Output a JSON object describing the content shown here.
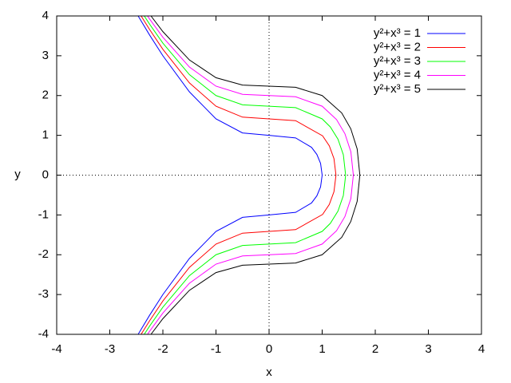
{
  "chart_data": {
    "type": "line",
    "x_label": "x",
    "y_label": "y",
    "xlim": [
      -4,
      4
    ],
    "ylim": [
      -4,
      4
    ],
    "xticks": [
      -4,
      -3,
      -2,
      -1,
      0,
      1,
      2,
      3,
      4
    ],
    "yticks": [
      -4,
      -3,
      -2,
      -1,
      0,
      1,
      2,
      3,
      4
    ],
    "zeroaxis": true,
    "legend": "top-right",
    "series": [
      {
        "name": "y²+x³ = 1",
        "color": "#0000ff",
        "x": [
          -2.466,
          -2.25,
          -2,
          -1.5,
          -1,
          -0.5,
          0,
          0.5,
          0.8,
          0.9,
          0.97,
          1,
          0.97,
          0.9,
          0.8,
          0.5,
          0,
          -0.5,
          -1,
          -1.5,
          -2,
          -2.25,
          -2.466
        ],
        "y": [
          4,
          3.52,
          3,
          2.092,
          1.414,
          1.061,
          1,
          0.935,
          0.699,
          0.521,
          0.295,
          0,
          -0.295,
          -0.521,
          -0.699,
          -0.935,
          -1,
          -1.061,
          -1.414,
          -2.092,
          -3,
          -3.52,
          -4
        ]
      },
      {
        "name": "y²+x³ = 2",
        "color": "#ff0000",
        "x": [
          -2.41,
          -2.25,
          -2,
          -1.5,
          -1,
          -0.5,
          0,
          0.5,
          1.008,
          1.134,
          1.222,
          1.26,
          1.222,
          1.134,
          1.008,
          0.5,
          0,
          -0.5,
          -1,
          -1.5,
          -2,
          -2.25,
          -2.41
        ],
        "y": [
          4,
          3.659,
          3.162,
          2.318,
          1.732,
          1.458,
          1.414,
          1.369,
          0.988,
          0.737,
          0.417,
          0,
          -0.417,
          -0.737,
          -0.988,
          -1.369,
          -1.414,
          -1.458,
          -1.732,
          -2.318,
          -3.162,
          -3.659,
          -4
        ]
      },
      {
        "name": "y²+x³ = 3",
        "color": "#00ff00",
        "x": [
          -2.351,
          -2.25,
          -2,
          -1.5,
          -1,
          -0.5,
          0,
          0.5,
          1,
          1.154,
          1.298,
          1.399,
          1.442,
          1.399,
          1.298,
          1.154,
          1,
          0.5,
          0,
          -0.5,
          -1,
          -1.5,
          -2,
          -2.25,
          -2.351
        ],
        "y": [
          4,
          3.793,
          3.317,
          2.525,
          2,
          1.768,
          1.732,
          1.696,
          1.414,
          1.211,
          0.902,
          0.511,
          0,
          -0.511,
          -0.902,
          -1.211,
          -1.414,
          -1.696,
          -1.732,
          -1.768,
          -2,
          -2.525,
          -3.317,
          -3.793,
          -4
        ]
      },
      {
        "name": "y²+x³ = 4",
        "color": "#ff00ff",
        "x": [
          -2.289,
          -2.25,
          -2,
          -1.5,
          -1,
          -0.5,
          0,
          0.5,
          1,
          1.27,
          1.428,
          1.54,
          1.587,
          1.54,
          1.428,
          1.27,
          1,
          0.5,
          0,
          -0.5,
          -1,
          -1.5,
          -2,
          -2.25,
          -2.289
        ],
        "y": [
          4,
          3.923,
          3.464,
          2.716,
          2.236,
          2.031,
          2,
          1.969,
          1.732,
          1.398,
          1.042,
          0.59,
          0,
          -0.59,
          -1.042,
          -1.398,
          -1.732,
          -1.969,
          -2,
          -2.031,
          -2.236,
          -2.716,
          -3.464,
          -3.923,
          -4
        ]
      },
      {
        "name": "y²+x³ = 5",
        "color": "#000000",
        "x": [
          -2.224,
          -2,
          -1.5,
          -1,
          -0.5,
          0,
          0.5,
          1,
          1.368,
          1.539,
          1.659,
          1.71,
          1.659,
          1.539,
          1.368,
          1,
          0.5,
          0,
          -0.5,
          -1,
          -1.5,
          -2,
          -2.224
        ],
        "y": [
          4,
          3.606,
          2.894,
          2.449,
          2.264,
          2.236,
          2.208,
          2,
          1.563,
          1.165,
          0.66,
          0,
          -0.66,
          -1.165,
          -1.563,
          -2,
          -2.208,
          -2.236,
          -2.264,
          -2.449,
          -2.894,
          -3.606,
          -4
        ]
      }
    ]
  }
}
